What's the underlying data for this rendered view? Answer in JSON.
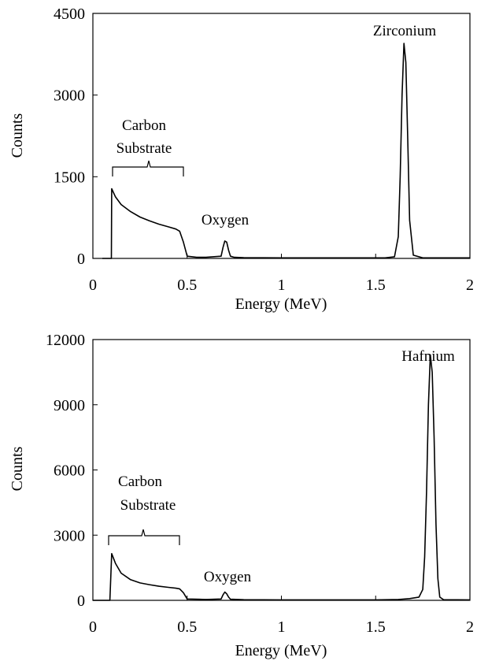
{
  "chart_data": [
    {
      "type": "line",
      "xlabel": "Energy (MeV)",
      "ylabel": "Counts",
      "xlim": [
        0,
        2
      ],
      "ylim": [
        0,
        4500
      ],
      "x_ticks": [
        "0",
        "0.5",
        "1",
        "1.5",
        "2"
      ],
      "y_ticks": [
        "0",
        "1500",
        "3000",
        "4500"
      ],
      "grid": false,
      "annotations": [
        {
          "text_lines": [
            "Carbon",
            "Substrate"
          ],
          "x": 0.28,
          "y": 1560
        },
        {
          "text": "Oxygen",
          "x": 0.71,
          "y": 500
        },
        {
          "text": "Zirconium",
          "x": 1.63,
          "y": 4150
        }
      ],
      "series": [
        {
          "x": [
            0.05,
            0.098,
            0.1,
            0.12,
            0.15,
            0.2,
            0.25,
            0.3,
            0.35,
            0.4,
            0.44,
            0.46,
            0.48,
            0.5,
            0.55,
            0.6,
            0.68,
            0.69,
            0.7,
            0.71,
            0.72,
            0.73,
            0.75,
            0.8,
            1.0,
            1.2,
            1.4,
            1.55,
            1.6,
            1.62,
            1.63,
            1.64,
            1.65,
            1.66,
            1.67,
            1.68,
            1.7,
            1.75,
            2.0
          ],
          "values": [
            0,
            0,
            1280,
            1130,
            990,
            860,
            760,
            690,
            630,
            580,
            540,
            500,
            300,
            40,
            20,
            20,
            40,
            200,
            320,
            300,
            150,
            40,
            20,
            15,
            10,
            10,
            10,
            10,
            30,
            400,
            1500,
            3000,
            3950,
            3600,
            2200,
            700,
            60,
            10,
            10
          ]
        }
      ]
    },
    {
      "type": "line",
      "xlabel": "Energy (MeV)",
      "ylabel": "Counts",
      "xlim": [
        0,
        2
      ],
      "ylim": [
        0,
        12000
      ],
      "x_ticks": [
        "0",
        "0.5",
        "1",
        "1.5",
        "2"
      ],
      "y_ticks": [
        "0",
        "3000",
        "6000",
        "9000",
        "12000"
      ],
      "grid": false,
      "annotations": [
        {
          "text_lines": [
            "Carbon",
            "Substrate"
          ],
          "x": 0.28,
          "y": 4200
        },
        {
          "text": "Oxygen",
          "x": 0.7,
          "y": 1300
        },
        {
          "text": "Hafnium",
          "x": 1.78,
          "y": 11800
        }
      ],
      "series": [
        {
          "x": [
            0.0,
            0.09,
            0.1,
            0.12,
            0.15,
            0.2,
            0.25,
            0.3,
            0.35,
            0.4,
            0.44,
            0.46,
            0.48,
            0.5,
            0.6,
            0.68,
            0.69,
            0.7,
            0.71,
            0.72,
            0.73,
            0.8,
            1.0,
            1.5,
            1.62,
            1.68,
            1.73,
            1.75,
            1.76,
            1.77,
            1.78,
            1.79,
            1.8,
            1.81,
            1.82,
            1.83,
            1.84,
            1.86,
            2.0
          ],
          "values": [
            0,
            0,
            2150,
            1700,
            1250,
            950,
            800,
            720,
            650,
            600,
            560,
            530,
            350,
            60,
            40,
            60,
            250,
            380,
            300,
            150,
            50,
            30,
            20,
            20,
            40,
            80,
            150,
            500,
            2000,
            5000,
            9000,
            11300,
            10500,
            7500,
            3500,
            1000,
            150,
            30,
            20
          ]
        }
      ]
    }
  ]
}
